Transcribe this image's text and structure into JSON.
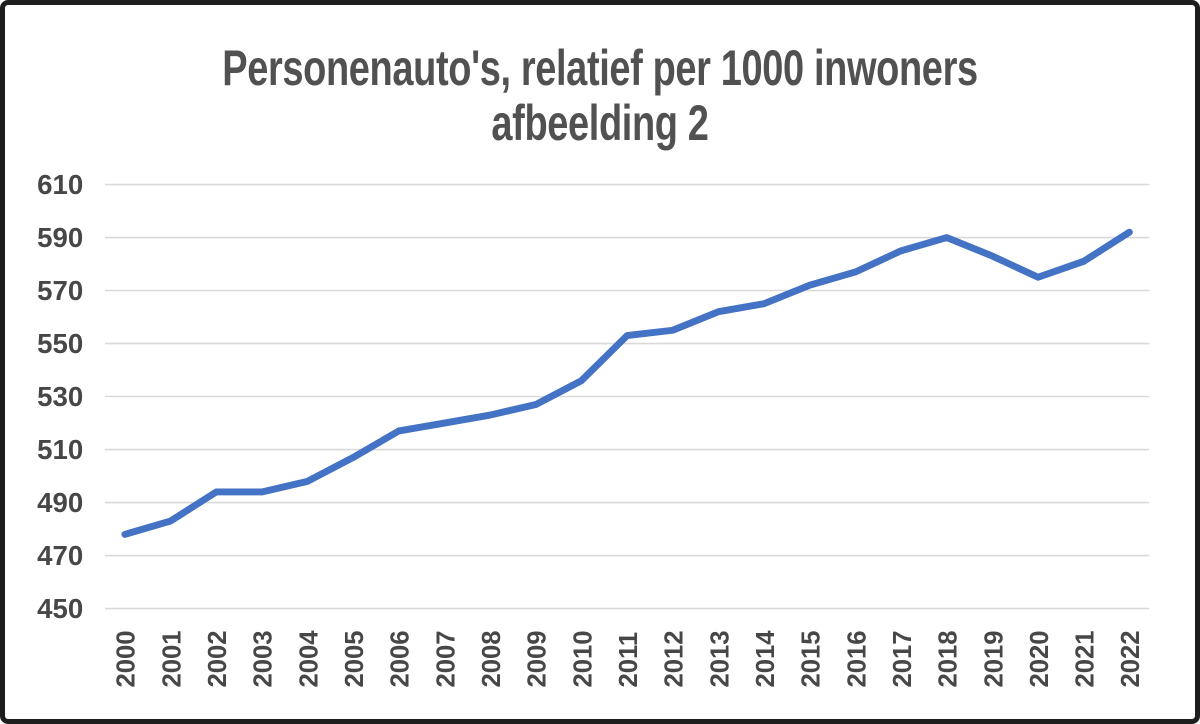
{
  "chart_data": {
    "type": "line",
    "title": "Personenauto's, relatief per 1000 inwoners",
    "subtitle": "afbeelding 2",
    "categories": [
      "2000",
      "2001",
      "2002",
      "2003",
      "2004",
      "2005",
      "2006",
      "2007",
      "2008",
      "2009",
      "2010",
      "2011",
      "2012",
      "2013",
      "2014",
      "2015",
      "2016",
      "2017",
      "2018",
      "2019",
      "2020",
      "2021",
      "2022"
    ],
    "values": [
      478,
      483,
      494,
      494,
      498,
      507,
      517,
      520,
      523,
      527,
      536,
      553,
      555,
      562,
      565,
      572,
      577,
      585,
      590,
      583,
      575,
      581,
      592
    ],
    "xlabel": "",
    "ylabel": "",
    "ylim": [
      450,
      610
    ],
    "yticks": [
      450,
      470,
      490,
      510,
      530,
      550,
      570,
      590,
      610
    ],
    "x_tick_rotation": -90,
    "grid": "horizontal",
    "legend": "none",
    "markers": "none",
    "colors": {
      "line": "#4472C4",
      "grid": "#D9D9D9",
      "tick_text": "#474747",
      "title_text": "#515151",
      "border": "#1e1e1e",
      "background": "#ffffff"
    }
  }
}
